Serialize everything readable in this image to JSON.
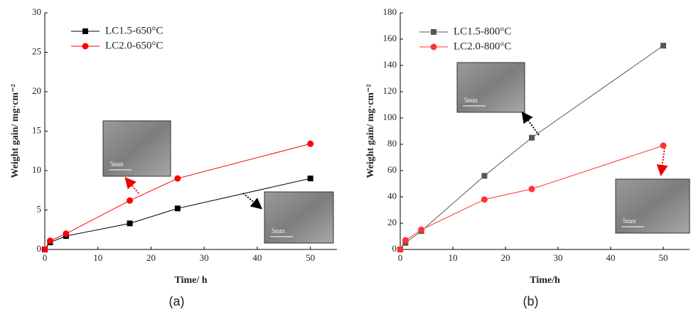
{
  "chart_data": [
    {
      "type": "line",
      "panel_label": "(a)",
      "xlabel": "Time/ h",
      "ylabel": "Weight gain/ mg·cm⁻²",
      "x": [
        0,
        1,
        4,
        16,
        25,
        50
      ],
      "xlim": [
        0,
        55
      ],
      "xticks": [
        0,
        10,
        20,
        30,
        40,
        50
      ],
      "ylim": [
        0,
        30
      ],
      "yticks": [
        0,
        5,
        10,
        15,
        20,
        25,
        30
      ],
      "series": [
        {
          "name": "LC1.5-650°C",
          "color": "#000000",
          "marker": "square",
          "values": [
            0,
            0.9,
            1.7,
            3.3,
            5.2,
            9.0
          ]
        },
        {
          "name": "LC2.0-650°C",
          "color": "#ff0000",
          "marker": "circle",
          "values": [
            0,
            1.1,
            2.0,
            6.2,
            9.0,
            13.4
          ]
        }
      ],
      "inset_labels": [
        "5mm",
        "5mm"
      ]
    },
    {
      "type": "line",
      "panel_label": "(b)",
      "xlabel": "Time/h",
      "ylabel": "Weight gain/ mg·cm⁻²",
      "x": [
        0,
        1,
        4,
        16,
        25,
        50
      ],
      "xlim": [
        0,
        55
      ],
      "xticks": [
        0,
        10,
        20,
        30,
        40,
        50
      ],
      "ylim": [
        0,
        180
      ],
      "yticks": [
        0,
        20,
        40,
        60,
        80,
        100,
        120,
        140,
        160,
        180
      ],
      "series": [
        {
          "name": "LC1.5-800°C",
          "color": "#555555",
          "marker": "square",
          "values": [
            0,
            5,
            14,
            56,
            85,
            155
          ]
        },
        {
          "name": "LC2.0-800°C",
          "color": "#ff3333",
          "marker": "circle",
          "values": [
            0,
            7,
            15,
            38,
            46,
            79
          ]
        }
      ],
      "inset_labels": [
        "5mm",
        "5mm"
      ]
    }
  ]
}
